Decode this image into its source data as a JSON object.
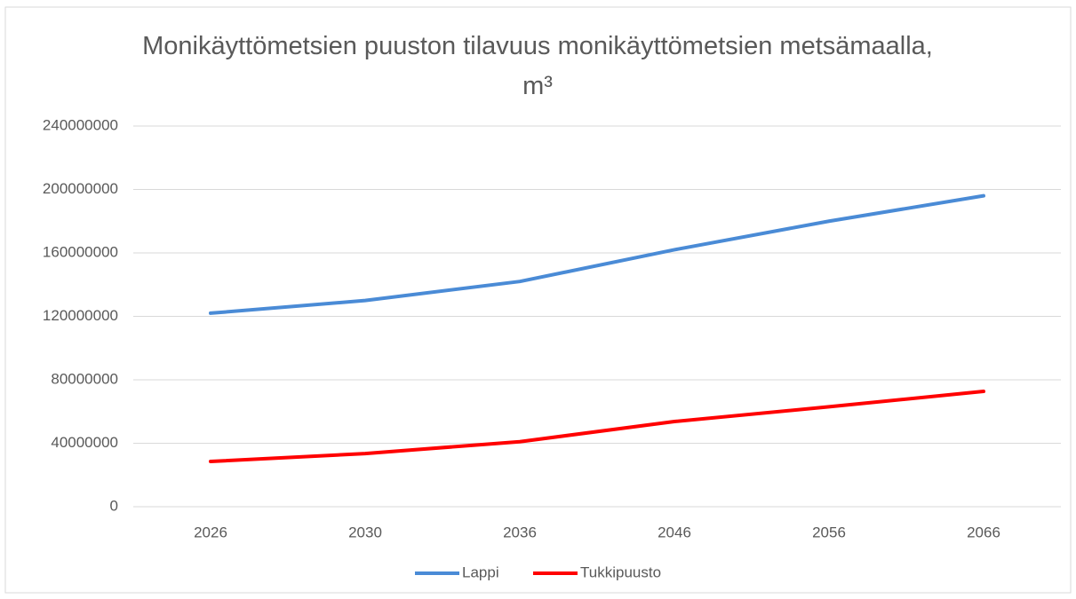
{
  "chart_data": {
    "type": "line",
    "title": "Monikäyttömetsien puuston tilavuus monikäyttömetsien metsämaalla, m³",
    "categories": [
      "2026",
      "2030",
      "2036",
      "2046",
      "2056",
      "2066"
    ],
    "series": [
      {
        "name": "Lappi",
        "color": "#4a8bd6",
        "values": [
          122000000,
          130000000,
          142000000,
          162000000,
          180000000,
          196000000
        ]
      },
      {
        "name": "Tukkipuusto",
        "color": "#ff0000",
        "values": [
          28500000,
          33500000,
          41000000,
          53700000,
          63000000,
          72700000
        ]
      }
    ],
    "ylim": [
      0,
      240000000
    ],
    "yticks": [
      0,
      40000000,
      80000000,
      120000000,
      160000000,
      200000000,
      240000000
    ],
    "grid": true,
    "legend": "bottom"
  }
}
